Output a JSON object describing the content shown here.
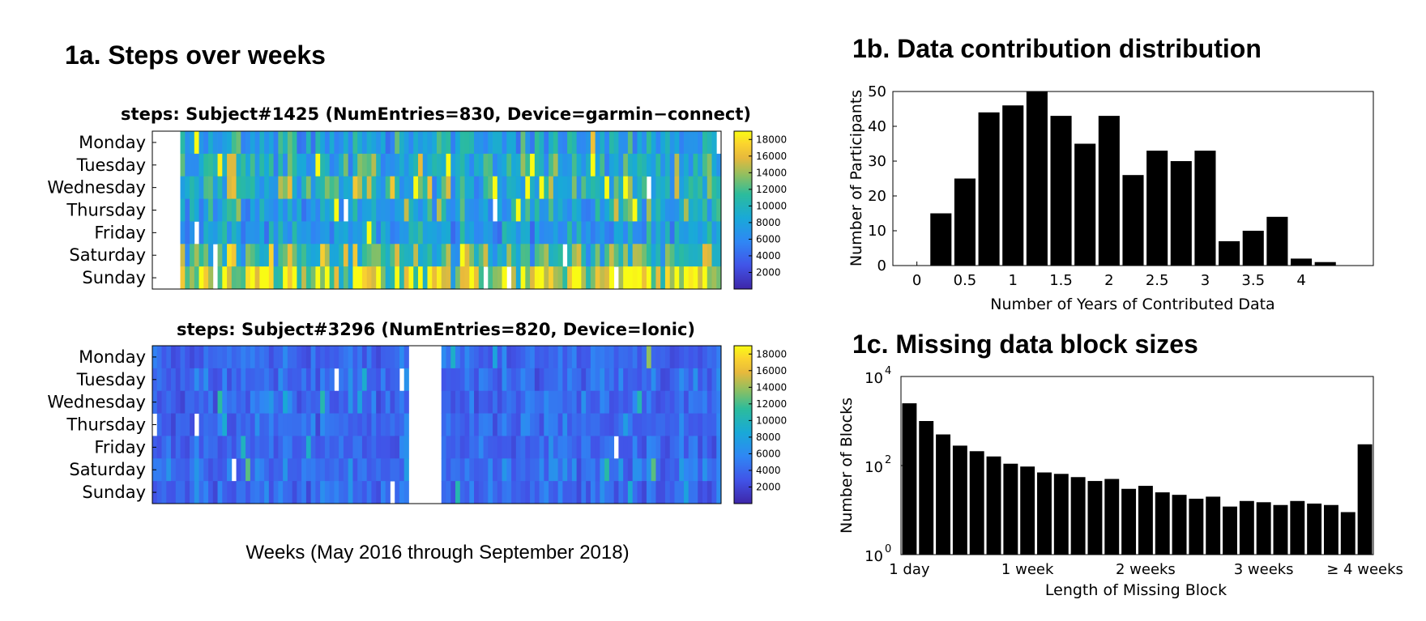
{
  "panel_1a": {
    "title": "1a. Steps over weeks",
    "caption": "Weeks (May 2016 through September 2018)"
  },
  "panel_1b": {
    "title": "1b. Data contribution distribution"
  },
  "panel_1c": {
    "title": "1c. Missing data block sizes"
  },
  "colors": {
    "bar": "#000000",
    "cmap_low": "#3e26a8",
    "cmap_mid": "#21b7ab",
    "cmap_high": "#f9fb14"
  },
  "chart_data": [
    {
      "id": "heatmap1",
      "type": "heatmap",
      "title": "steps: Subject#1425 (NumEntries=830, Device=garmin−connect)",
      "rows": [
        "Monday",
        "Tuesday",
        "Wednesday",
        "Thursday",
        "Friday",
        "Saturday",
        "Sunday"
      ],
      "num_weeks": 122,
      "missing_leading_weeks": 6,
      "row_mean_steps": [
        8000,
        9500,
        10000,
        8500,
        7500,
        11000,
        16000
      ],
      "colorbar_ticks": [
        2000,
        4000,
        6000,
        8000,
        10000,
        12000,
        14000,
        16000,
        18000
      ],
      "color_range": [
        0,
        19000
      ]
    },
    {
      "id": "heatmap2",
      "type": "heatmap",
      "title": "steps: Subject#3296 (NumEntries=820, Device=Ionic)",
      "rows": [
        "Monday",
        "Tuesday",
        "Wednesday",
        "Thursday",
        "Friday",
        "Saturday",
        "Sunday"
      ],
      "num_weeks": 122,
      "missing_week_range": [
        55,
        61
      ],
      "row_mean_steps": [
        4000,
        4000,
        4000,
        4000,
        4000,
        4500,
        4000
      ],
      "colorbar_ticks": [
        2000,
        4000,
        6000,
        8000,
        10000,
        12000,
        14000,
        16000,
        18000
      ],
      "color_range": [
        0,
        19000
      ]
    },
    {
      "id": "bar1b",
      "type": "bar",
      "title": "1b. Data contribution distribution",
      "xlabel": "Number of Years of Contributed Data",
      "ylabel": "Number of Participants",
      "x": [
        0,
        0.25,
        0.5,
        0.75,
        1,
        1.25,
        1.5,
        1.75,
        2,
        2.25,
        2.5,
        2.75,
        3,
        3.25,
        3.5,
        3.75,
        4,
        4.25
      ],
      "values": [
        0,
        15,
        25,
        44,
        46,
        50,
        43,
        35,
        43,
        26,
        33,
        30,
        33,
        7,
        10,
        14,
        2,
        1
      ],
      "xticks": [
        0,
        0.5,
        1,
        1.5,
        2,
        2.5,
        3,
        3.5,
        4
      ],
      "xtick_labels": [
        "0",
        "0.5",
        "1",
        "1.5",
        "2",
        "2.5",
        "3",
        "3.5",
        "4"
      ],
      "xlim": [
        -0.25,
        4.75
      ],
      "ylim": [
        0,
        50
      ],
      "yticks": [
        0,
        10,
        20,
        30,
        40,
        50
      ]
    },
    {
      "id": "bar1c",
      "type": "bar",
      "title": "1c. Missing data block sizes",
      "xlabel": "Length of Missing Block",
      "ylabel": "Number of Blocks",
      "yscale": "log",
      "categories": [
        "1",
        "2",
        "3",
        "4",
        "5",
        "6",
        "7",
        "8",
        "9",
        "10",
        "11",
        "12",
        "13",
        "14",
        "15",
        "16",
        "17",
        "18",
        "19",
        "20",
        "21",
        "22",
        "23",
        "24",
        "25",
        "26",
        "27",
        "28"
      ],
      "values": [
        2500,
        1000,
        500,
        280,
        210,
        160,
        110,
        95,
        70,
        65,
        55,
        45,
        50,
        30,
        35,
        25,
        22,
        18,
        20,
        12,
        16,
        15,
        13,
        16,
        14,
        13,
        9,
        300
      ],
      "xtick_positions": [
        1,
        8,
        15,
        22,
        28
      ],
      "xtick_labels": [
        "1 day",
        "1 week",
        "2 weeks",
        "3 weeks",
        "≥ 4 weeks"
      ],
      "ylim_log10": [
        0,
        4
      ],
      "ytick_labels": [
        "10",
        "10",
        "10"
      ],
      "ytick_exponents": [
        "0",
        "2",
        "4"
      ]
    }
  ]
}
